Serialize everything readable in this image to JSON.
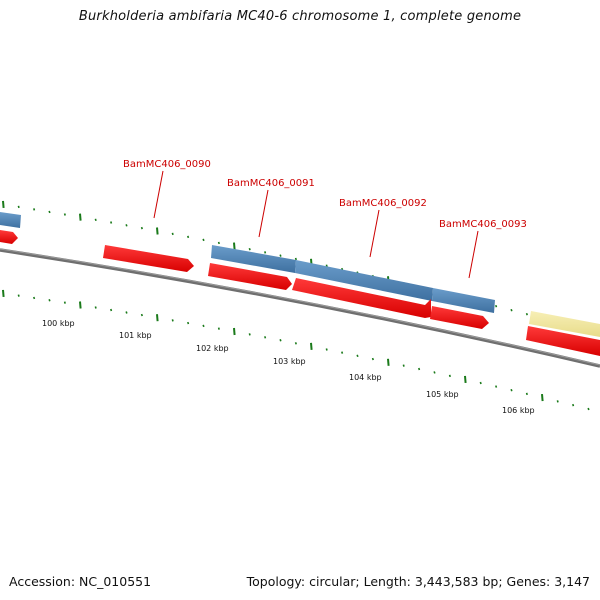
{
  "title": "Burkholderia ambifaria MC40-6 chromosome 1, complete genome",
  "footer": {
    "accession": "Accession: NC_010551",
    "summary": "Topology: circular; Length: 3,443,583 bp; Genes: 3,147"
  },
  "colors": {
    "cds": "#ee1111",
    "gene": "#4f86b8",
    "other_gene": "#f3e9a2",
    "backbone": "#777777",
    "tick": "#1a7a1a",
    "label": "#cc0000"
  },
  "gene_labels": [
    "BamMC406_0090",
    "BamMC406_0091",
    "BamMC406_0092",
    "BamMC406_0093"
  ],
  "kbp_labels": [
    "100 kbp",
    "101 kbp",
    "102 kbp",
    "103 kbp",
    "104 kbp",
    "105 kbp",
    "106 kbp"
  ]
}
